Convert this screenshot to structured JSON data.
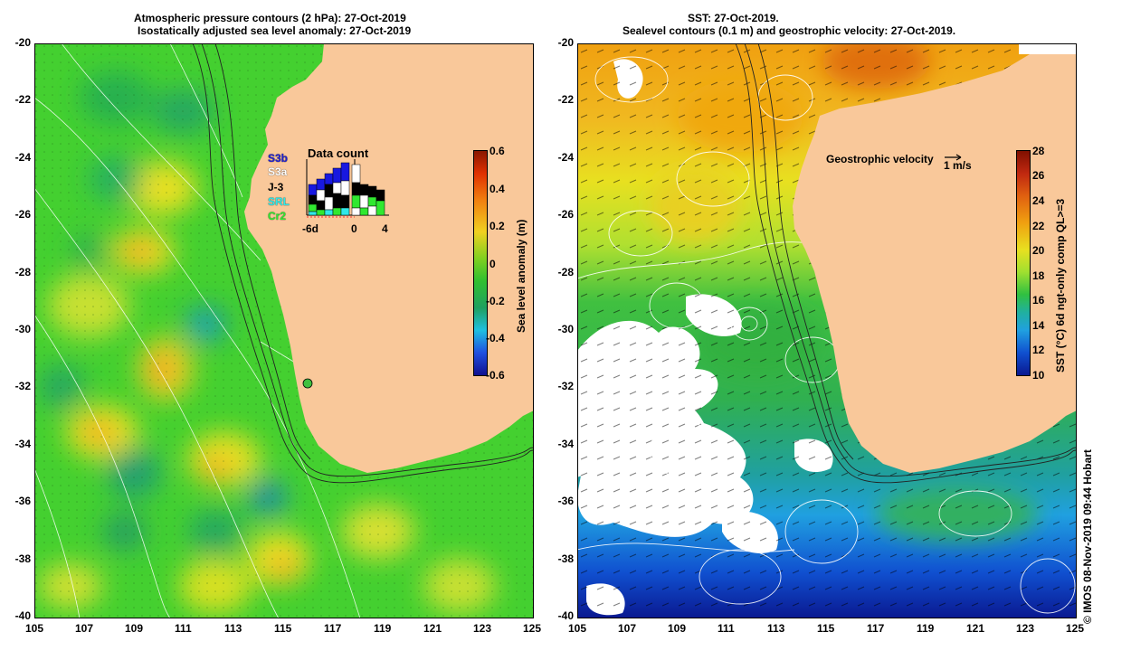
{
  "left_panel": {
    "title_line1": "Atmospheric pressure contours (2 hPa): 27-Oct-2019",
    "title_line2": "Isostatically adjusted sea level anomaly: 27-Oct-2019",
    "colorbar_label": "Sea level anomaly (m)",
    "colorbar_ticks": [
      "0.6",
      "0.4",
      "0.2",
      "0",
      "-0.2",
      "-0.4",
      "-0.6"
    ],
    "inset": {
      "title": "Data count",
      "satellites": [
        "S3b",
        "S3a",
        "J-3",
        "SRL",
        "Cr2"
      ],
      "x_ticks": [
        "-6d",
        "0",
        "4"
      ]
    }
  },
  "right_panel": {
    "title_line1": "SST: 27-Oct-2019.",
    "title_line2": "Sealevel contours (0.1 m) and geostrophic velocity: 27-Oct-2019.",
    "colorbar_label": "SST (°C) 6d ngt-only comp QL>=3",
    "colorbar_ticks": [
      "28",
      "26",
      "24",
      "22",
      "20",
      "18",
      "16",
      "14",
      "12",
      "10"
    ],
    "velocity_label": "Geostrophic velocity",
    "velocity_scale": "1 m/s"
  },
  "axes": {
    "x_ticks": [
      "105",
      "107",
      "109",
      "111",
      "113",
      "115",
      "117",
      "119",
      "121",
      "123",
      "125"
    ],
    "y_ticks": [
      "-20",
      "-22",
      "-24",
      "-26",
      "-28",
      "-30",
      "-32",
      "-34",
      "-36",
      "-38",
      "-40"
    ]
  },
  "credit": "© IMOS 08-Nov-2019 09:44 Hobart",
  "colors": {
    "land": "#f9c89a",
    "sla_base": "#3ccf2c",
    "sst_warm": "#f0a010",
    "sst_cool": "#1050d0"
  }
}
